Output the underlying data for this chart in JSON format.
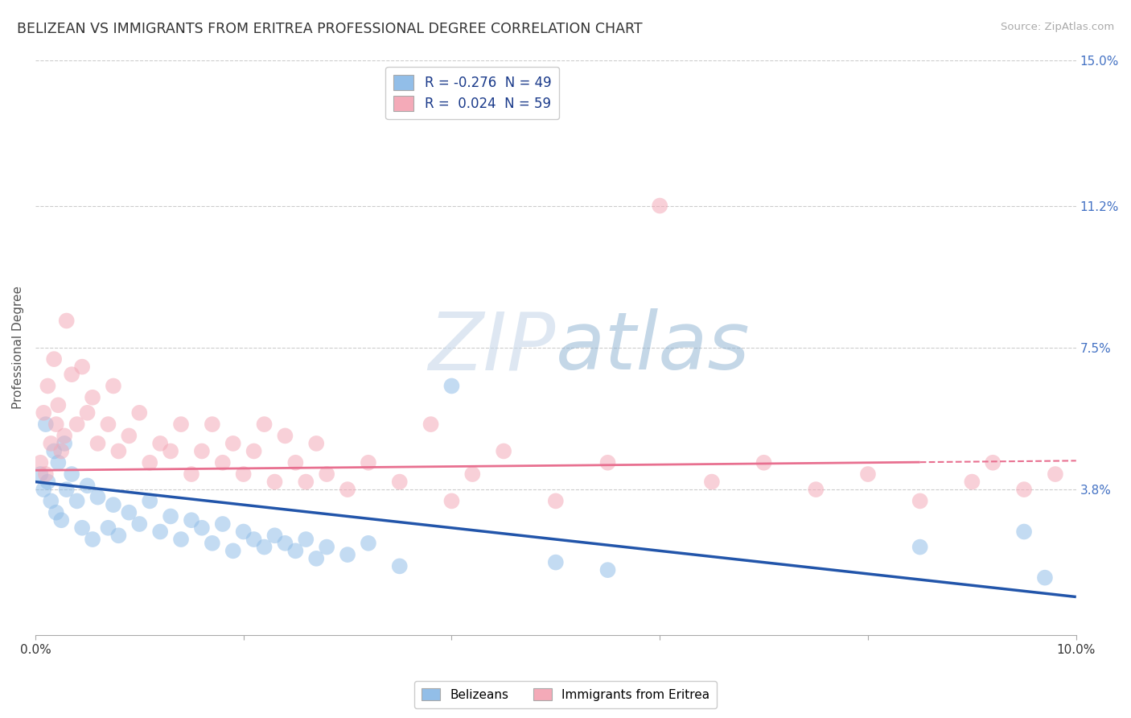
{
  "title": "BELIZEAN VS IMMIGRANTS FROM ERITREA PROFESSIONAL DEGREE CORRELATION CHART",
  "source": "Source: ZipAtlas.com",
  "ylabel": "Professional Degree",
  "xlim": [
    0.0,
    10.0
  ],
  "ylim": [
    0.0,
    15.0
  ],
  "x_tick_positions": [
    0.0,
    2.0,
    4.0,
    6.0,
    8.0,
    10.0
  ],
  "x_tick_labels": [
    "0.0%",
    "",
    "",
    "",
    "",
    "10.0%"
  ],
  "y_tick_labels_right": [
    "3.8%",
    "7.5%",
    "11.2%",
    "15.0%"
  ],
  "y_tick_vals_right": [
    3.8,
    7.5,
    11.2,
    15.0
  ],
  "legend_labels_bottom": [
    "Belizeans",
    "Immigrants from Eritrea"
  ],
  "blue_color": "#92bee8",
  "pink_color": "#f4aab8",
  "blue_line_color": "#2255aa",
  "pink_line_color": "#e87090",
  "blue_scatter": [
    [
      0.05,
      4.2
    ],
    [
      0.08,
      3.8
    ],
    [
      0.1,
      5.5
    ],
    [
      0.12,
      4.0
    ],
    [
      0.15,
      3.5
    ],
    [
      0.18,
      4.8
    ],
    [
      0.2,
      3.2
    ],
    [
      0.22,
      4.5
    ],
    [
      0.25,
      3.0
    ],
    [
      0.28,
      5.0
    ],
    [
      0.3,
      3.8
    ],
    [
      0.35,
      4.2
    ],
    [
      0.4,
      3.5
    ],
    [
      0.45,
      2.8
    ],
    [
      0.5,
      3.9
    ],
    [
      0.55,
      2.5
    ],
    [
      0.6,
      3.6
    ],
    [
      0.7,
      2.8
    ],
    [
      0.75,
      3.4
    ],
    [
      0.8,
      2.6
    ],
    [
      0.9,
      3.2
    ],
    [
      1.0,
      2.9
    ],
    [
      1.1,
      3.5
    ],
    [
      1.2,
      2.7
    ],
    [
      1.3,
      3.1
    ],
    [
      1.4,
      2.5
    ],
    [
      1.5,
      3.0
    ],
    [
      1.6,
      2.8
    ],
    [
      1.7,
      2.4
    ],
    [
      1.8,
      2.9
    ],
    [
      1.9,
      2.2
    ],
    [
      2.0,
      2.7
    ],
    [
      2.1,
      2.5
    ],
    [
      2.2,
      2.3
    ],
    [
      2.3,
      2.6
    ],
    [
      2.4,
      2.4
    ],
    [
      2.5,
      2.2
    ],
    [
      2.6,
      2.5
    ],
    [
      2.7,
      2.0
    ],
    [
      2.8,
      2.3
    ],
    [
      3.0,
      2.1
    ],
    [
      3.2,
      2.4
    ],
    [
      3.5,
      1.8
    ],
    [
      4.0,
      6.5
    ],
    [
      5.0,
      1.9
    ],
    [
      5.5,
      1.7
    ],
    [
      8.5,
      2.3
    ],
    [
      9.5,
      2.7
    ],
    [
      9.7,
      1.5
    ]
  ],
  "pink_scatter": [
    [
      0.05,
      4.5
    ],
    [
      0.08,
      5.8
    ],
    [
      0.1,
      4.2
    ],
    [
      0.12,
      6.5
    ],
    [
      0.15,
      5.0
    ],
    [
      0.18,
      7.2
    ],
    [
      0.2,
      5.5
    ],
    [
      0.22,
      6.0
    ],
    [
      0.25,
      4.8
    ],
    [
      0.28,
      5.2
    ],
    [
      0.3,
      8.2
    ],
    [
      0.35,
      6.8
    ],
    [
      0.4,
      5.5
    ],
    [
      0.45,
      7.0
    ],
    [
      0.5,
      5.8
    ],
    [
      0.55,
      6.2
    ],
    [
      0.6,
      5.0
    ],
    [
      0.7,
      5.5
    ],
    [
      0.75,
      6.5
    ],
    [
      0.8,
      4.8
    ],
    [
      0.9,
      5.2
    ],
    [
      1.0,
      5.8
    ],
    [
      1.1,
      4.5
    ],
    [
      1.2,
      5.0
    ],
    [
      1.3,
      4.8
    ],
    [
      1.4,
      5.5
    ],
    [
      1.5,
      4.2
    ],
    [
      1.6,
      4.8
    ],
    [
      1.7,
      5.5
    ],
    [
      1.8,
      4.5
    ],
    [
      1.9,
      5.0
    ],
    [
      2.0,
      4.2
    ],
    [
      2.1,
      4.8
    ],
    [
      2.2,
      5.5
    ],
    [
      2.3,
      4.0
    ],
    [
      2.4,
      5.2
    ],
    [
      2.5,
      4.5
    ],
    [
      2.6,
      4.0
    ],
    [
      2.7,
      5.0
    ],
    [
      2.8,
      4.2
    ],
    [
      3.0,
      3.8
    ],
    [
      3.2,
      4.5
    ],
    [
      3.5,
      4.0
    ],
    [
      3.8,
      5.5
    ],
    [
      4.0,
      3.5
    ],
    [
      4.2,
      4.2
    ],
    [
      4.5,
      4.8
    ],
    [
      5.0,
      3.5
    ],
    [
      5.5,
      4.5
    ],
    [
      6.0,
      11.2
    ],
    [
      6.5,
      4.0
    ],
    [
      7.0,
      4.5
    ],
    [
      7.5,
      3.8
    ],
    [
      8.0,
      4.2
    ],
    [
      8.5,
      3.5
    ],
    [
      9.0,
      4.0
    ],
    [
      9.2,
      4.5
    ],
    [
      9.5,
      3.8
    ],
    [
      9.8,
      4.2
    ]
  ],
  "blue_line_y0": 4.0,
  "blue_line_y1": 1.0,
  "pink_line_y0": 4.3,
  "pink_line_y1": 4.55,
  "pink_line_solid_end": 8.5
}
